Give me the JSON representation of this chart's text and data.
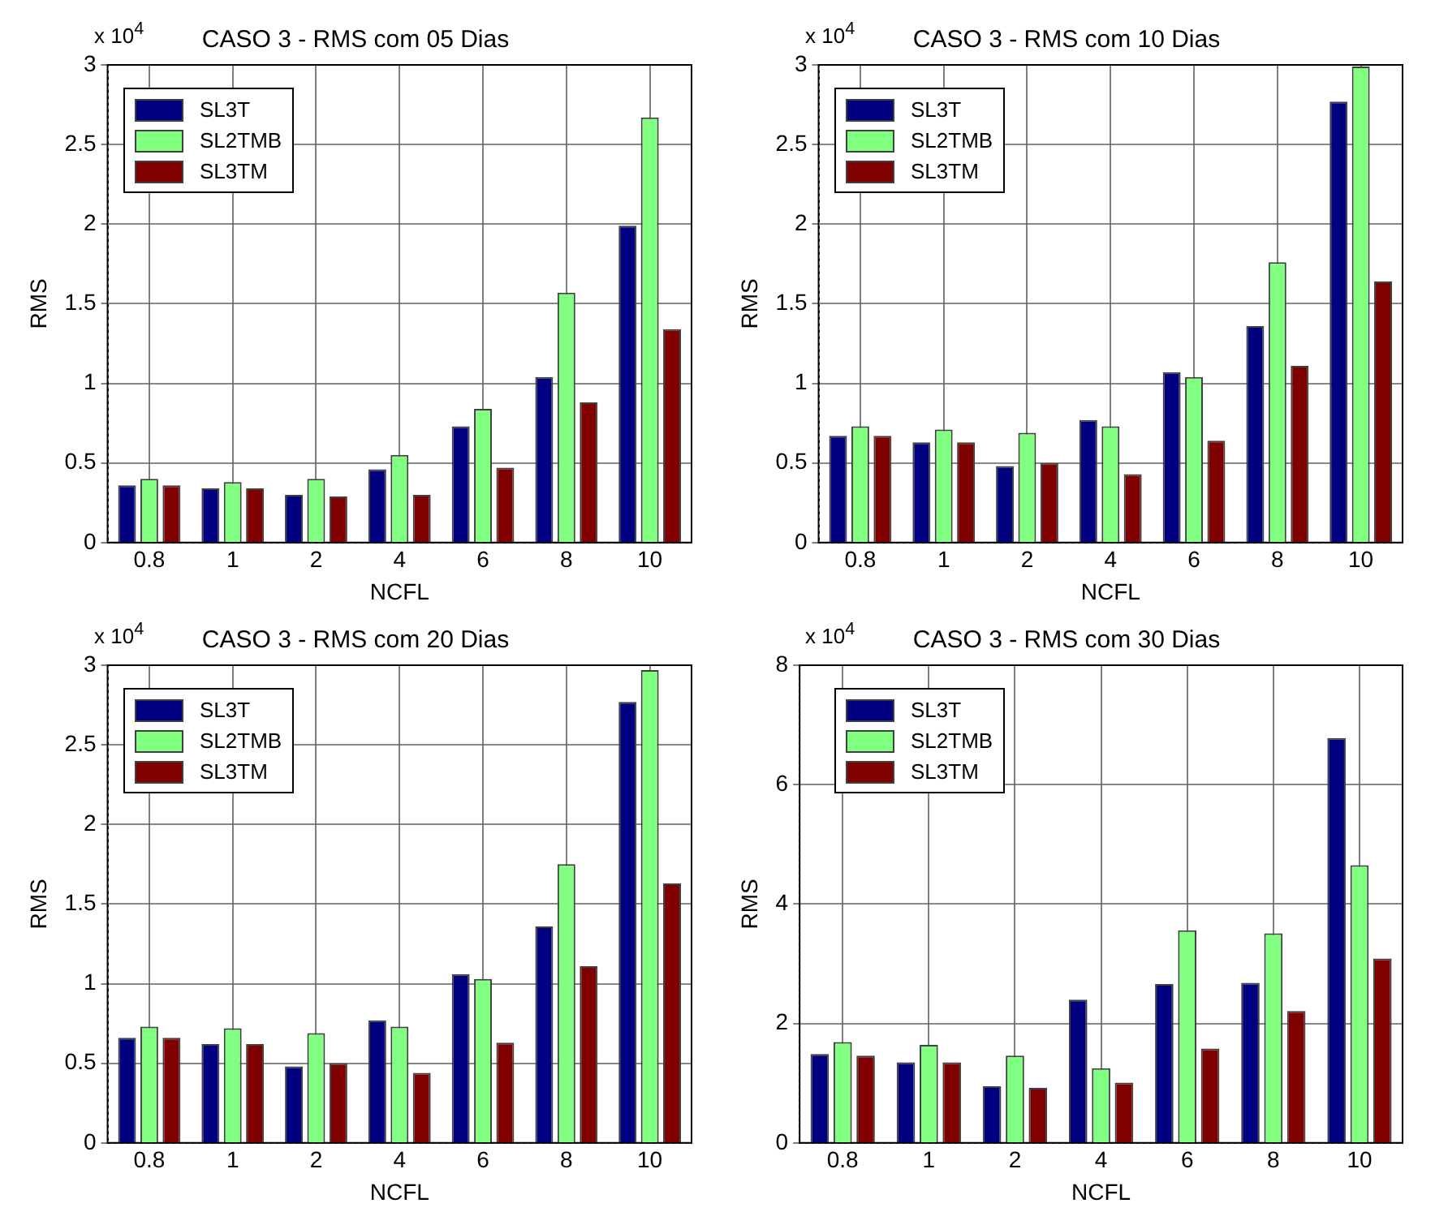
{
  "chart_data": [
    {
      "type": "bar",
      "title": "CASO 3 - RMS com 05 Dias",
      "xlabel": "NCFL",
      "ylabel": "RMS",
      "annotations": [
        "x 10$^{4}$"
      ],
      "categories": [
        "0.8",
        "1",
        "2",
        "4",
        "6",
        "8",
        "10"
      ],
      "series": [
        {
          "name": "SL3T",
          "color": "#000080",
          "values": [
            0.36,
            0.34,
            0.3,
            0.46,
            0.73,
            1.04,
            1.99
          ]
        },
        {
          "name": "SL2TMB",
          "color": "#80ff80",
          "values": [
            0.4,
            0.38,
            0.4,
            0.55,
            0.84,
            1.57,
            2.67
          ]
        },
        {
          "name": "SL3TM",
          "color": "#800000",
          "values": [
            0.36,
            0.34,
            0.29,
            0.3,
            0.47,
            0.88,
            1.34
          ]
        }
      ],
      "ylim": [
        0,
        3
      ],
      "yticks": [
        0,
        0.5,
        1,
        1.5,
        2,
        2.5,
        3
      ],
      "grid": true,
      "legend": "top left"
    },
    {
      "type": "bar",
      "title": "CASO 3 - RMS com 10 Dias",
      "xlabel": "NCFL",
      "ylabel": "RMS",
      "annotations": [
        "x 10$^{4}$"
      ],
      "categories": [
        "0.8",
        "1",
        "2",
        "4",
        "6",
        "8",
        "10"
      ],
      "series": [
        {
          "name": "SL3T",
          "color": "#000080",
          "values": [
            0.67,
            0.63,
            0.48,
            0.77,
            1.07,
            1.36,
            2.77
          ]
        },
        {
          "name": "SL2TMB",
          "color": "#80ff80",
          "values": [
            0.73,
            0.71,
            0.69,
            0.73,
            1.04,
            1.76,
            2.99
          ]
        },
        {
          "name": "SL3TM",
          "color": "#800000",
          "values": [
            0.67,
            0.63,
            0.5,
            0.43,
            0.64,
            1.11,
            1.64
          ]
        }
      ],
      "ylim": [
        0,
        3
      ],
      "yticks": [
        0,
        0.5,
        1,
        1.5,
        2,
        2.5,
        3
      ],
      "grid": true,
      "legend": "top left"
    },
    {
      "type": "bar",
      "title": "CASO 3 - RMS com 20 Dias",
      "xlabel": "NCFL",
      "ylabel": "RMS",
      "annotations": [
        "x 10$^{4}$"
      ],
      "categories": [
        "0.8",
        "1",
        "2",
        "4",
        "6",
        "8",
        "10"
      ],
      "series": [
        {
          "name": "SL3T",
          "color": "#000080",
          "values": [
            0.66,
            0.62,
            0.48,
            0.77,
            1.06,
            1.36,
            2.77
          ]
        },
        {
          "name": "SL2TMB",
          "color": "#80ff80",
          "values": [
            0.73,
            0.72,
            0.69,
            0.73,
            1.03,
            1.75,
            2.97
          ]
        },
        {
          "name": "SL3TM",
          "color": "#800000",
          "values": [
            0.66,
            0.62,
            0.5,
            0.44,
            0.63,
            1.11,
            1.63
          ]
        }
      ],
      "ylim": [
        0,
        3
      ],
      "yticks": [
        0,
        0.5,
        1,
        1.5,
        2,
        2.5,
        3
      ],
      "grid": true,
      "legend": "top left"
    },
    {
      "type": "bar",
      "title": "CASO 3 - RMS com 30 Dias",
      "xlabel": "NCFL",
      "ylabel": "RMS",
      "annotations": [
        "x 10$^{4}$"
      ],
      "categories": [
        "0.8",
        "1",
        "2",
        "4",
        "6",
        "8",
        "10"
      ],
      "series": [
        {
          "name": "SL3T",
          "color": "#000080",
          "values": [
            1.49,
            1.35,
            0.95,
            2.4,
            2.66,
            2.68,
            6.78
          ]
        },
        {
          "name": "SL2TMB",
          "color": "#80ff80",
          "values": [
            1.69,
            1.64,
            1.46,
            1.25,
            3.56,
            3.51,
            4.65
          ]
        },
        {
          "name": "SL3TM",
          "color": "#800000",
          "values": [
            1.46,
            1.35,
            0.92,
            1.01,
            1.58,
            2.21,
            3.09
          ]
        }
      ],
      "ylim": [
        0,
        8
      ],
      "yticks": [
        0,
        2,
        4,
        6,
        8
      ],
      "grid": true,
      "legend": "top left"
    }
  ]
}
